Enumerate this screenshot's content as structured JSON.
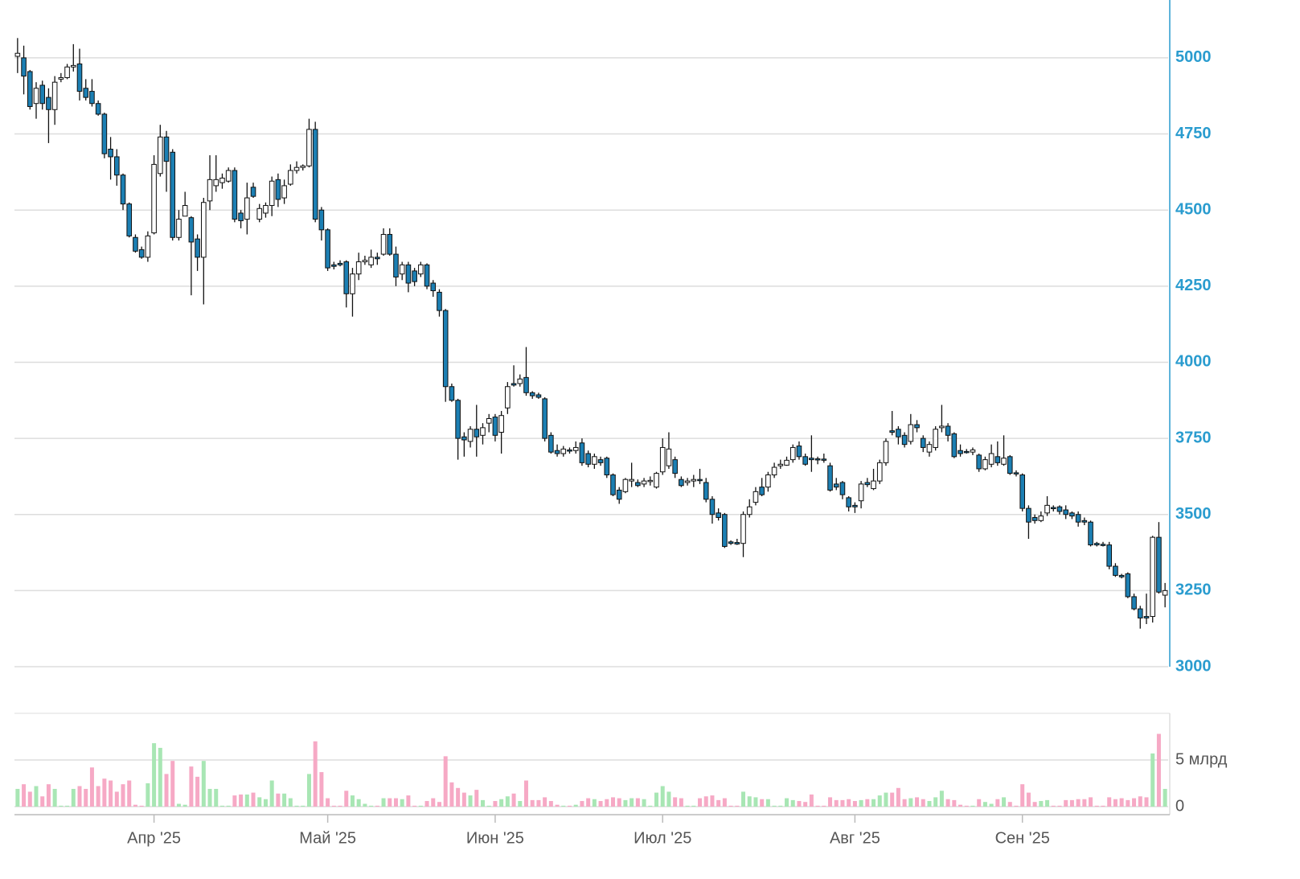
{
  "chart_data": {
    "type": "candlestick",
    "categories": [
      null,
      null,
      null,
      null,
      null,
      null,
      null,
      null,
      null,
      null,
      null,
      null,
      null,
      null,
      null,
      null,
      null,
      null,
      null,
      null,
      null,
      null,
      "Апр '25",
      null,
      null,
      null,
      null,
      null,
      null,
      null,
      null,
      null,
      null,
      null,
      null,
      null,
      null,
      null,
      null,
      null,
      null,
      null,
      null,
      null,
      null,
      null,
      null,
      null,
      null,
      null,
      "Май '25",
      null,
      null,
      null,
      null,
      null,
      null,
      null,
      null,
      null,
      null,
      null,
      null,
      null,
      null,
      null,
      null,
      null,
      null,
      null,
      null,
      null,
      null,
      null,
      null,
      null,
      null,
      "Июн '25",
      null,
      null,
      null,
      null,
      null,
      null,
      null,
      null,
      null,
      null,
      null,
      null,
      null,
      null,
      null,
      null,
      null,
      null,
      null,
      null,
      null,
      null,
      null,
      null,
      null,
      null,
      "Июл '25",
      null,
      null,
      null,
      null,
      null,
      null,
      null,
      null,
      null,
      null,
      null,
      null,
      null,
      null,
      null,
      null,
      null,
      null,
      null,
      null,
      null,
      null,
      null,
      null,
      null,
      null,
      null,
      null,
      null,
      null,
      "Авг '25",
      null,
      null,
      null,
      null,
      null,
      null,
      null,
      null,
      null,
      null,
      null,
      null,
      null,
      null,
      null,
      null,
      null,
      null,
      null,
      null,
      null,
      null,
      null,
      null,
      null,
      null,
      "Сен '25",
      null,
      null,
      null,
      null,
      null,
      null,
      null,
      null,
      null,
      null,
      null,
      null,
      null,
      null,
      null,
      null,
      null,
      null,
      null,
      null,
      null,
      null,
      null
    ],
    "open": [
      5005,
      5000,
      4955,
      4850,
      4910,
      4870,
      4830,
      4930,
      4935,
      4970,
      4980,
      4900,
      4890,
      4850,
      4815,
      4700,
      4675,
      4615,
      4520,
      4410,
      4370,
      4345,
      4425,
      4620,
      4740,
      4690,
      4410,
      4480,
      4475,
      4405,
      4345,
      4530,
      4580,
      4590,
      4595,
      4630,
      4490,
      4470,
      4575,
      4470,
      4490,
      4515,
      4600,
      4540,
      4585,
      4630,
      4640,
      4645,
      4765,
      4500,
      4435,
      4320,
      4325,
      4330,
      4225,
      4290,
      4330,
      4320,
      4345,
      4355,
      4420,
      4355,
      4290,
      4320,
      4300,
      4290,
      4320,
      4260,
      4230,
      4170,
      3920,
      3875,
      3755,
      3740,
      3780,
      3760,
      3800,
      3820,
      3770,
      3850,
      3930,
      3930,
      3950,
      3900,
      3893,
      3880,
      3760,
      3710,
      3700,
      3712,
      3710,
      3735,
      3700,
      3665,
      3680,
      3685,
      3630,
      3580,
      3575,
      3610,
      3605,
      3600,
      3608,
      3590,
      3640,
      3660,
      3680,
      3615,
      3605,
      3610,
      3615,
      3605,
      3550,
      3505,
      3500,
      3410,
      3408,
      3405,
      3500,
      3540,
      3590,
      3590,
      3630,
      3660,
      3662,
      3680,
      3725,
      3690,
      3685,
      3683,
      3682,
      3660,
      3600,
      3605,
      3555,
      3530,
      3545,
      3605,
      3585,
      3610,
      3670,
      3775,
      3780,
      3760,
      3740,
      3795,
      3750,
      3705,
      3720,
      3785,
      3790,
      3765,
      3710,
      3707,
      3705,
      3695,
      3650,
      3665,
      3690,
      3665,
      3690,
      3637,
      3630,
      3520,
      3490,
      3480,
      3505,
      3523,
      3525,
      3515,
      3505,
      3500,
      3480,
      3475,
      3405,
      3402,
      3400,
      3330,
      3300,
      3305,
      3230,
      3190,
      3165,
      3165,
      3425,
      3235
    ],
    "high": [
      5065,
      5040,
      4960,
      4920,
      4925,
      4900,
      4940,
      4950,
      4980,
      5045,
      5030,
      4930,
      4930,
      4860,
      4820,
      4740,
      4700,
      4620,
      4525,
      4420,
      4380,
      4430,
      4680,
      4780,
      4760,
      4700,
      4500,
      4560,
      4480,
      4420,
      4540,
      4680,
      4680,
      4620,
      4640,
      4640,
      4500,
      4590,
      4590,
      4520,
      4525,
      4610,
      4620,
      4600,
      4650,
      4660,
      4650,
      4800,
      4790,
      4510,
      4440,
      4330,
      4335,
      4335,
      4310,
      4360,
      4350,
      4370,
      4360,
      4440,
      4440,
      4380,
      4330,
      4330,
      4310,
      4330,
      4325,
      4270,
      4240,
      4175,
      3930,
      3880,
      3770,
      3790,
      3860,
      3800,
      3830,
      3830,
      3840,
      3935,
      3990,
      3960,
      4050,
      3905,
      3900,
      3885,
      3770,
      3730,
      3725,
      3720,
      3740,
      3750,
      3710,
      3700,
      3690,
      3690,
      3635,
      3590,
      3620,
      3670,
      3615,
      3620,
      3625,
      3640,
      3750,
      3770,
      3690,
      3625,
      3620,
      3630,
      3650,
      3620,
      3560,
      3520,
      3505,
      3415,
      3420,
      3510,
      3550,
      3590,
      3620,
      3640,
      3670,
      3680,
      3690,
      3730,
      3740,
      3700,
      3760,
      3690,
      3700,
      3670,
      3620,
      3610,
      3560,
      3540,
      3610,
      3620,
      3650,
      3680,
      3750,
      3840,
      3790,
      3770,
      3830,
      3810,
      3760,
      3740,
      3790,
      3860,
      3800,
      3770,
      3730,
      3715,
      3720,
      3700,
      3690,
      3730,
      3740,
      3760,
      3695,
      3645,
      3635,
      3530,
      3500,
      3510,
      3560,
      3530,
      3530,
      3530,
      3510,
      3510,
      3490,
      3480,
      3410,
      3410,
      3410,
      3340,
      3305,
      3310,
      3240,
      3200,
      3240,
      3430,
      3475,
      3275
    ],
    "low": [
      4950,
      4880,
      4830,
      4800,
      4830,
      4720,
      4780,
      4920,
      4930,
      4955,
      4860,
      4860,
      4840,
      4810,
      4670,
      4600,
      4580,
      4500,
      4410,
      4360,
      4340,
      4330,
      4420,
      4610,
      4560,
      4400,
      4400,
      4480,
      4220,
      4300,
      4190,
      4500,
      4560,
      4570,
      4590,
      4460,
      4440,
      4420,
      4540,
      4460,
      4475,
      4480,
      4510,
      4520,
      4580,
      4620,
      4630,
      4640,
      4460,
      4400,
      4300,
      4305,
      4315,
      4180,
      4150,
      4270,
      4320,
      4310,
      4320,
      4350,
      4350,
      4250,
      4270,
      4230,
      4250,
      4280,
      4240,
      4215,
      4150,
      3870,
      3870,
      3680,
      3690,
      3720,
      3690,
      3730,
      3770,
      3740,
      3700,
      3830,
      3920,
      3920,
      3890,
      3880,
      3880,
      3740,
      3700,
      3690,
      3690,
      3700,
      3700,
      3660,
      3655,
      3650,
      3660,
      3620,
      3560,
      3535,
      3570,
      3590,
      3590,
      3590,
      3595,
      3585,
      3630,
      3650,
      3620,
      3590,
      3595,
      3590,
      3600,
      3540,
      3470,
      3480,
      3390,
      3400,
      3400,
      3360,
      3490,
      3530,
      3560,
      3575,
      3620,
      3650,
      3660,
      3670,
      3680,
      3660,
      3640,
      3665,
      3670,
      3575,
      3580,
      3550,
      3510,
      3505,
      3520,
      3590,
      3580,
      3600,
      3660,
      3760,
      3730,
      3720,
      3730,
      3770,
      3705,
      3690,
      3710,
      3770,
      3740,
      3685,
      3690,
      3700,
      3695,
      3640,
      3645,
      3655,
      3660,
      3660,
      3630,
      3625,
      3510,
      3420,
      3470,
      3475,
      3495,
      3510,
      3500,
      3485,
      3485,
      3460,
      3465,
      3395,
      3395,
      3395,
      3320,
      3295,
      3290,
      3225,
      3185,
      3125,
      3140,
      3145,
      3240,
      3195
    ],
    "close": [
      5015,
      4940,
      4840,
      4900,
      4850,
      4830,
      4920,
      4935,
      4970,
      4975,
      4890,
      4870,
      4850,
      4815,
      4685,
      4675,
      4615,
      4520,
      4415,
      4365,
      4345,
      4415,
      4650,
      4740,
      4660,
      4410,
      4470,
      4515,
      4395,
      4345,
      4525,
      4600,
      4600,
      4605,
      4630,
      4470,
      4465,
      4540,
      4545,
      4505,
      4515,
      4595,
      4535,
      4580,
      4630,
      4640,
      4645,
      4765,
      4470,
      4435,
      4310,
      4315,
      4320,
      4225,
      4290,
      4330,
      4335,
      4345,
      4340,
      4420,
      4355,
      4280,
      4320,
      4260,
      4265,
      4320,
      4250,
      4235,
      4170,
      3920,
      3875,
      3750,
      3745,
      3780,
      3755,
      3785,
      3815,
      3760,
      3825,
      3920,
      3925,
      3945,
      3900,
      3890,
      3885,
      3750,
      3705,
      3700,
      3715,
      3708,
      3720,
      3670,
      3665,
      3690,
      3670,
      3630,
      3565,
      3550,
      3615,
      3615,
      3595,
      3610,
      3612,
      3635,
      3720,
      3715,
      3635,
      3595,
      3610,
      3615,
      3612,
      3550,
      3500,
      3490,
      3395,
      3405,
      3403,
      3500,
      3525,
      3575,
      3565,
      3630,
      3655,
      3665,
      3678,
      3720,
      3690,
      3665,
      3680,
      3680,
      3678,
      3580,
      3590,
      3565,
      3525,
      3525,
      3600,
      3598,
      3610,
      3670,
      3740,
      3770,
      3755,
      3730,
      3795,
      3785,
      3720,
      3730,
      3780,
      3790,
      3760,
      3690,
      3700,
      3705,
      3712,
      3650,
      3680,
      3700,
      3670,
      3685,
      3635,
      3633,
      3520,
      3475,
      3480,
      3495,
      3530,
      3520,
      3510,
      3500,
      3495,
      3475,
      3475,
      3400,
      3400,
      3398,
      3330,
      3300,
      3295,
      3230,
      3190,
      3160,
      3160,
      3425,
      3245,
      3250
    ],
    "volume": [
      1.9,
      2.4,
      1.6,
      2.2,
      1.1,
      2.4,
      1.9,
      0.1,
      0.1,
      1.9,
      2.2,
      1.9,
      4.2,
      2.2,
      3.0,
      2.8,
      1.6,
      2.4,
      2.8,
      0.2,
      0.1,
      2.5,
      6.8,
      6.3,
      3.5,
      4.9,
      0.3,
      0.2,
      4.3,
      3.2,
      4.9,
      1.9,
      1.9,
      0.1,
      0.1,
      1.2,
      1.3,
      1.3,
      1.5,
      1.0,
      0.8,
      2.8,
      1.4,
      1.4,
      0.9,
      0.1,
      0.1,
      3.5,
      7.0,
      3.7,
      0.9,
      0.1,
      0.1,
      1.7,
      1.2,
      0.8,
      0.3,
      0.1,
      0.1,
      0.9,
      0.9,
      0.9,
      0.8,
      1.2,
      0.1,
      0.1,
      0.6,
      0.9,
      0.5,
      5.4,
      2.6,
      2.0,
      1.5,
      1.2,
      1.8,
      0.7,
      0.1,
      0.6,
      0.8,
      1.1,
      1.4,
      0.6,
      2.8,
      0.7,
      0.7,
      1.0,
      0.6,
      0.2,
      0.1,
      0.1,
      0.2,
      0.6,
      0.9,
      0.8,
      0.6,
      0.8,
      1.0,
      0.9,
      0.7,
      0.9,
      0.9,
      0.8,
      0.1,
      1.5,
      2.2,
      1.6,
      1.0,
      0.9,
      0.1,
      0.1,
      0.9,
      1.1,
      1.2,
      0.7,
      0.9,
      0.1,
      0.1,
      1.6,
      1.1,
      1.0,
      0.8,
      0.8,
      0.1,
      0.1,
      0.9,
      0.7,
      0.6,
      0.5,
      1.3,
      0.1,
      0.1,
      1.0,
      0.7,
      0.7,
      0.8,
      0.6,
      0.7,
      0.8,
      0.8,
      1.2,
      1.5,
      1.5,
      2.0,
      0.8,
      0.9,
      1.0,
      0.8,
      0.6,
      1.0,
      1.7,
      0.8,
      0.7,
      0.2,
      0.1,
      0.1,
      0.8,
      0.5,
      0.3,
      0.8,
      1.0,
      0.5,
      0.1,
      2.4,
      1.5,
      0.5,
      0.6,
      0.7,
      0.1,
      0.1,
      0.7,
      0.7,
      0.8,
      0.8,
      1.0,
      0.1,
      0.1,
      1.0,
      0.8,
      0.9,
      0.7,
      0.9,
      1.1,
      1.0,
      5.7,
      7.8,
      1.9
    ],
    "ylim": [
      3000,
      5190
    ],
    "yticks": [
      3000,
      3250,
      3500,
      3750,
      4000,
      4250,
      4500,
      4750,
      5000
    ],
    "volume_ylim": [
      0,
      10
    ],
    "volume_yticks": [
      0,
      {
        "value": 5,
        "label": "5 млрд"
      }
    ],
    "grid": true,
    "up_color": "#ffffff",
    "down_color": "#1c7fb3",
    "wick_color": "#111111",
    "volume_up_color": "#a8e6b4",
    "volume_down_color": "#f6a9c5",
    "axis_color": "#2a9ccf",
    "grid_color": "#dddddd"
  }
}
